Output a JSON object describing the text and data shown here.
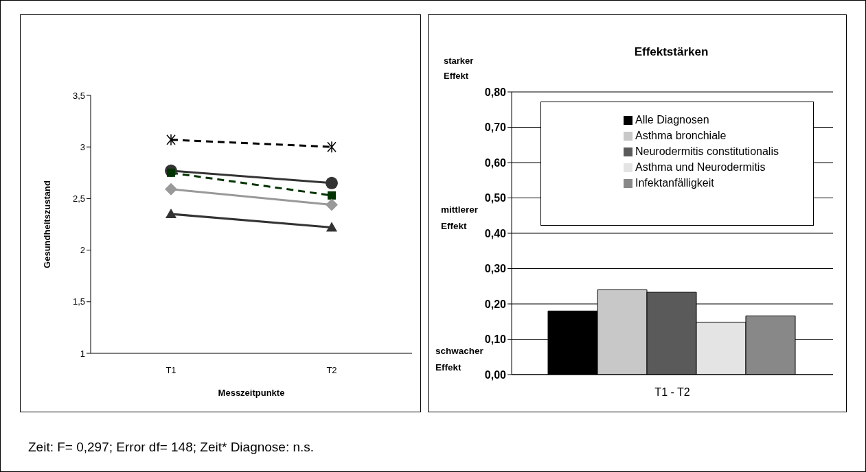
{
  "chart_data": [
    {
      "type": "line",
      "xlabel": "Messzeitpunkte",
      "ylabel": "Gesundheitszustand",
      "categories": [
        "T1",
        "T2"
      ],
      "series": [
        {
          "color": "#000000",
          "values": [
            3.07,
            3.0
          ],
          "marker": "cross",
          "line_style": "dashed"
        },
        {
          "color": "#333333",
          "values": [
            2.77,
            2.65
          ],
          "marker": "circle",
          "line_style": "solid"
        },
        {
          "color": "#003300",
          "values": [
            2.75,
            2.53
          ],
          "marker": "square",
          "line_style": "dashed"
        },
        {
          "color": "#999999",
          "values": [
            2.59,
            2.44
          ],
          "marker": "diamond",
          "line_style": "solid"
        },
        {
          "color": "#333333",
          "values": [
            2.35,
            2.22
          ],
          "marker": "triangle",
          "line_style": "solid"
        }
      ],
      "ylim": [
        1,
        3.5
      ],
      "yticks": [
        1,
        {
          "value": 1.5,
          "label": "1,5"
        },
        2,
        {
          "value": 2.5,
          "label": "2,5"
        },
        3,
        {
          "value": 3.5,
          "label": "3,5"
        }
      ],
      "grid": false,
      "legend": false,
      "annotations": [
        "Zeit: F= 0,297; Error df= 148; Zeit* Diagnose: n.s."
      ]
    },
    {
      "type": "bar",
      "title": "Effektstärken",
      "categories": [
        "T1 - T2"
      ],
      "series": [
        {
          "name": "Alle Diagnosen",
          "color": "#000000",
          "values": [
            0.18
          ]
        },
        {
          "name": "Asthma bronchiale",
          "color": "#c8c8c8",
          "values": [
            0.24
          ]
        },
        {
          "name": "Neurodermitis constitutionalis",
          "color": "#5a5a5a",
          "values": [
            0.233
          ]
        },
        {
          "name": "Asthma und Neurodermitis",
          "color": "#e4e4e4",
          "values": [
            0.148
          ]
        },
        {
          "name": "Infektanfälligkeit",
          "color": "#888888",
          "values": [
            0.166
          ]
        }
      ],
      "ylim": [
        0,
        0.8
      ],
      "yticks": [
        {
          "value": 0,
          "label": "0,00"
        },
        {
          "value": 0.1,
          "label": "0,10"
        },
        {
          "value": 0.2,
          "label": "0,20"
        },
        {
          "value": 0.3,
          "label": "0,30"
        },
        {
          "value": 0.4,
          "label": "0,40"
        },
        {
          "value": 0.5,
          "label": "0,50"
        },
        {
          "value": 0.6,
          "label": "0,60"
        },
        {
          "value": 0.7,
          "label": "0,70"
        },
        {
          "value": 0.8,
          "label": "0,80"
        }
      ],
      "grid": "y",
      "legend": "top",
      "annotations": [
        "starker Effekt",
        "mittlerer Effekt",
        "schwacher Effekt"
      ]
    }
  ]
}
